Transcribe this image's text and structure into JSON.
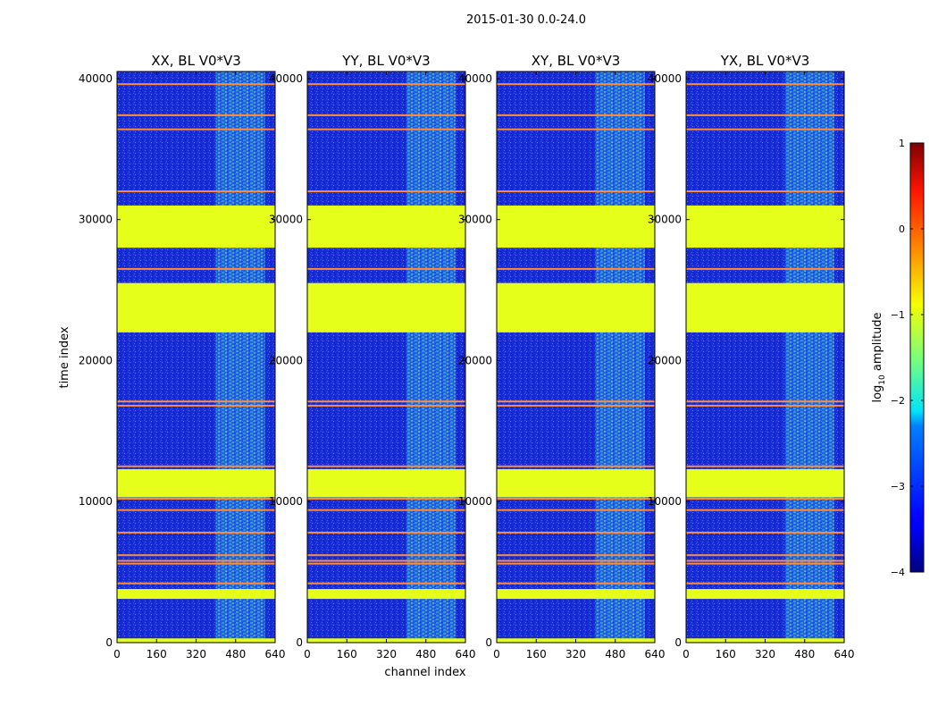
{
  "figure_title": "2015-01-30 0.0-24.0",
  "chart_data": {
    "type": "heatmap",
    "title": "2015-01-30 0.0-24.0",
    "xlabel": "channel index",
    "ylabel": "time index",
    "xlim": [
      0,
      640
    ],
    "ylim": [
      0,
      40500
    ],
    "x_ticks": [
      0,
      160,
      320,
      480,
      640
    ],
    "y_ticks": [
      0,
      10000,
      20000,
      30000,
      40000
    ],
    "x_tick_labels": [
      "0",
      "160",
      "320",
      "480",
      "640"
    ],
    "y_tick_labels": [
      "0",
      "10000",
      "20000",
      "30000",
      "40000"
    ],
    "panels": [
      {
        "label": "XX, BL V0*V3",
        "polarization": "XX"
      },
      {
        "label": "YY, BL V0*V3",
        "polarization": "YY"
      },
      {
        "label": "XY, BL V0*V3",
        "polarization": "XY"
      },
      {
        "label": "YX, BL V0*V3",
        "polarization": "YX"
      }
    ],
    "rfi_channel_range": [
      400,
      600
    ],
    "flagged_time_blocks": [
      {
        "start": 28000,
        "end": 31000,
        "level": -1
      },
      {
        "start": 22000,
        "end": 25500,
        "level": -1
      },
      {
        "start": 10300,
        "end": 12300,
        "level": -1
      },
      {
        "start": 3100,
        "end": 3800,
        "level": -1
      },
      {
        "start": 0,
        "end": 300,
        "level": -1
      }
    ],
    "orange_flag_lines": [
      39600,
      37400,
      36400,
      32000,
      26500,
      17100,
      16800,
      12500,
      10200,
      9400,
      7800,
      6200,
      5800,
      5600,
      4200
    ],
    "colorbar": {
      "label": "log10 amplitude",
      "label_text": "log",
      "label_sub": "10",
      "label_suffix": " amplitude",
      "min": -4,
      "max": 1,
      "ticks": [
        1,
        0,
        -1,
        -2,
        -3,
        -4
      ],
      "tick_labels": [
        "1",
        "0",
        "−1",
        "−2",
        "−3",
        "−4"
      ],
      "colormap": "jet"
    }
  }
}
